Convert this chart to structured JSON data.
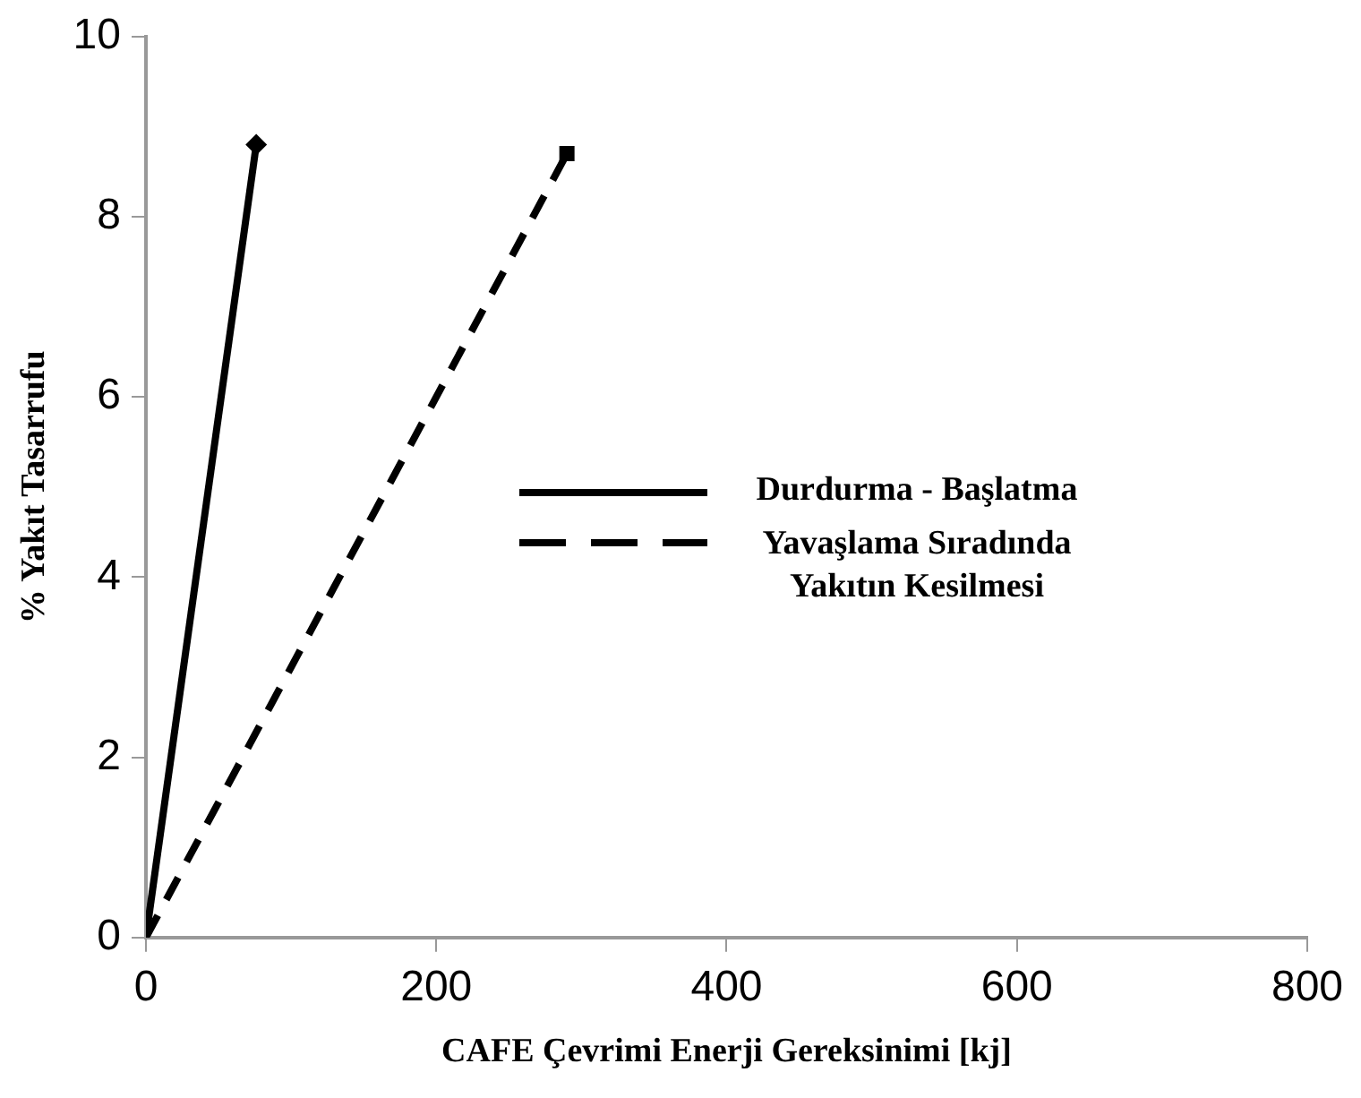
{
  "chart_data": {
    "type": "line",
    "xlabel": "CAFE Çevrimi Enerji Gereksinimi [kj]",
    "ylabel": "% Yakıt Tasarrufu",
    "xlim": [
      0,
      800
    ],
    "xticks": [
      0,
      200,
      400,
      600,
      800
    ],
    "ylim": [
      0,
      10
    ],
    "yticks": [
      0,
      2,
      4,
      6,
      8,
      10
    ],
    "grid": false,
    "legend": "right",
    "series": [
      {
        "name": "Durdurma - Başlatma",
        "color": "#000000",
        "x": [
          0,
          76
        ],
        "values": [
          0,
          8.8
        ],
        "marker": "diamond",
        "line_style": "solid"
      },
      {
        "name": "Yavaşlama Sıradında Yakıtın Kesilmesi",
        "color": "#000000",
        "x": [
          0,
          290
        ],
        "values": [
          0,
          8.7
        ],
        "marker": "square",
        "line_style": "dashed"
      }
    ]
  }
}
